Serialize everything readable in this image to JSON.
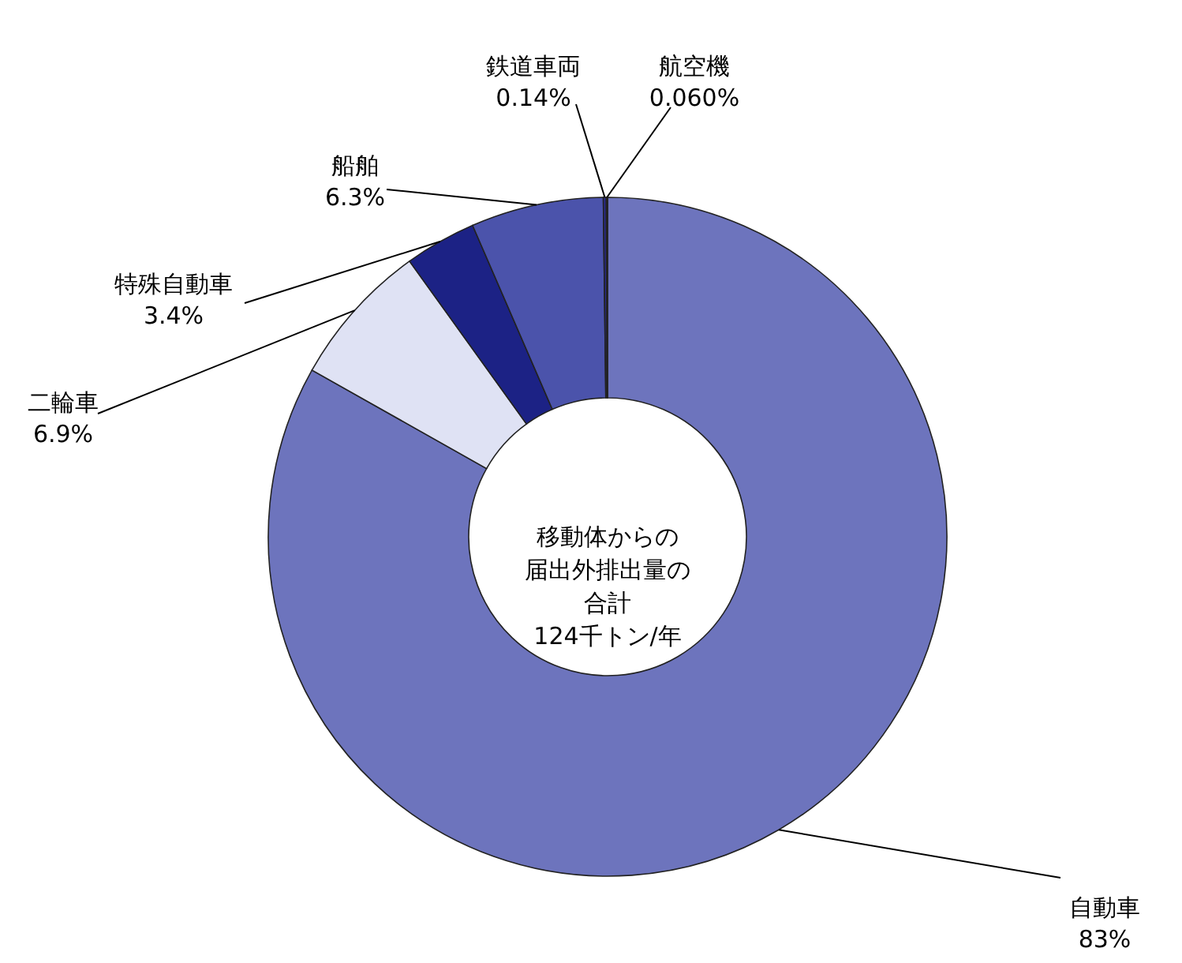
{
  "chart_data": {
    "type": "donut",
    "categories": [
      "自動車",
      "二輪車",
      "特殊自動車",
      "船舶",
      "鉄道車両",
      "航空機"
    ],
    "values": [
      83,
      6.9,
      3.4,
      6.3,
      0.14,
      0.06
    ],
    "value_labels": [
      "83%",
      "6.9%",
      "3.4%",
      "6.3%",
      "0.14%",
      "0.060%"
    ],
    "colors": [
      "#6d74bd",
      "#dfe2f4",
      "#1c2285",
      "#4b53ab",
      "#2a2a8f",
      "#8a1a3a"
    ],
    "annotations": [
      "移動体からの",
      "届出外排出量の",
      "合計",
      "124千トン/年"
    ]
  }
}
